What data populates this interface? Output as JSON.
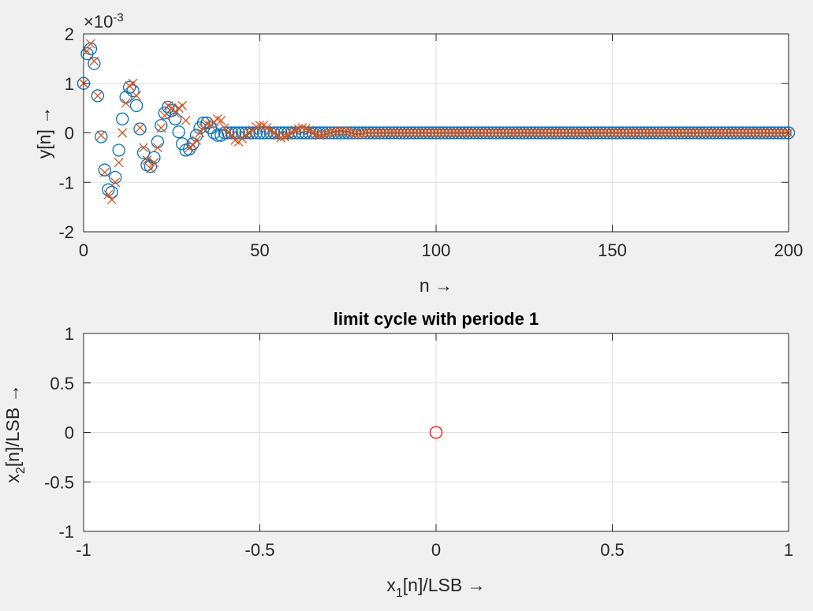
{
  "chart_data": [
    {
      "type": "scatter",
      "title": "",
      "xlabel": "n →",
      "ylabel": "y[n] →",
      "exponent_label": "×10",
      "exponent_power": "-3",
      "xlim": [
        0,
        200
      ],
      "ylim": [
        -2,
        2
      ],
      "xticks": [
        "0",
        "50",
        "100",
        "150",
        "200"
      ],
      "yticks": [
        "2",
        "1",
        "0",
        "-1",
        "-2"
      ],
      "grid": true,
      "colors": {
        "series1": "#0072bd",
        "series2": "#d95319"
      },
      "series": [
        {
          "marker": "circle",
          "color": "#0072bd",
          "points": [
            [
              0,
              1.0
            ],
            [
              1,
              1.6
            ],
            [
              2,
              1.7
            ],
            [
              3,
              1.4
            ],
            [
              4,
              0.75
            ],
            [
              5,
              -0.08
            ],
            [
              6,
              -0.75
            ],
            [
              7,
              -1.15
            ],
            [
              8,
              -1.2
            ],
            [
              9,
              -0.9
            ],
            [
              10,
              -0.35
            ],
            [
              11,
              0.28
            ],
            [
              12,
              0.72
            ],
            [
              13,
              0.92
            ],
            [
              14,
              0.85
            ],
            [
              15,
              0.55
            ],
            [
              16,
              0.08
            ],
            [
              17,
              -0.4
            ],
            [
              18,
              -0.65
            ],
            [
              19,
              -0.68
            ],
            [
              20,
              -0.5
            ],
            [
              21,
              -0.18
            ],
            [
              22,
              0.15
            ],
            [
              23,
              0.4
            ],
            [
              24,
              0.52
            ],
            [
              25,
              0.45
            ],
            [
              26,
              0.28
            ],
            [
              27,
              0.02
            ],
            [
              28,
              -0.22
            ],
            [
              29,
              -0.35
            ],
            [
              30,
              -0.33
            ],
            [
              31,
              -0.22
            ],
            [
              32,
              -0.05
            ],
            [
              33,
              0.1
            ],
            [
              34,
              0.2
            ],
            [
              35,
              0.2
            ],
            [
              36,
              0.1
            ],
            [
              37,
              0.0
            ],
            [
              38,
              -0.05
            ],
            [
              39,
              -0.05
            ],
            [
              40,
              0.0
            ],
            [
              41,
              0.0
            ]
          ],
          "tail_from": 42,
          "tail_to": 200,
          "tail_value": 0
        },
        {
          "marker": "cross",
          "color": "#d95319",
          "points": [
            [
              0,
              1.0
            ],
            [
              1,
              1.65
            ],
            [
              2,
              1.8
            ],
            [
              3,
              1.45
            ],
            [
              4,
              0.75
            ],
            [
              5,
              -0.05
            ],
            [
              6,
              -0.8
            ],
            [
              7,
              -1.25
            ],
            [
              8,
              -1.35
            ],
            [
              9,
              -1.0
            ],
            [
              10,
              -0.6
            ],
            [
              11,
              0.0
            ],
            [
              12,
              0.6
            ],
            [
              13,
              0.95
            ],
            [
              14,
              1.0
            ],
            [
              15,
              0.75
            ],
            [
              16,
              0.1
            ],
            [
              17,
              -0.3
            ],
            [
              18,
              -0.55
            ],
            [
              19,
              -0.72
            ],
            [
              20,
              -0.6
            ],
            [
              21,
              -0.3
            ],
            [
              22,
              0.1
            ],
            [
              23,
              0.35
            ],
            [
              24,
              0.55
            ],
            [
              25,
              0.5
            ],
            [
              26,
              0.4
            ],
            [
              27,
              0.5
            ],
            [
              28,
              0.55
            ],
            [
              29,
              0.25
            ],
            [
              30,
              -0.3
            ],
            [
              31,
              -0.25
            ],
            [
              32,
              -0.15
            ],
            [
              33,
              0.0
            ],
            [
              34,
              0.1
            ],
            [
              35,
              0.18
            ],
            [
              36,
              0.15
            ],
            [
              37,
              0.22
            ],
            [
              38,
              0.28
            ],
            [
              39,
              0.25
            ],
            [
              40,
              0.1
            ],
            [
              41,
              0.0
            ],
            [
              42,
              -0.05
            ],
            [
              43,
              -0.15
            ],
            [
              44,
              -0.18
            ],
            [
              45,
              -0.12
            ],
            [
              46,
              -0.05
            ],
            [
              47,
              0.0
            ],
            [
              48,
              0.05
            ],
            [
              49,
              0.12
            ],
            [
              50,
              0.15
            ],
            [
              51,
              0.15
            ],
            [
              52,
              0.1
            ],
            [
              53,
              0.05
            ],
            [
              54,
              0.0
            ],
            [
              55,
              -0.05
            ],
            [
              56,
              -0.1
            ],
            [
              57,
              -0.08
            ],
            [
              58,
              -0.05
            ],
            [
              59,
              0.0
            ],
            [
              60,
              0.05
            ],
            [
              61,
              0.08
            ],
            [
              62,
              0.1
            ],
            [
              63,
              0.08
            ],
            [
              64,
              0.05
            ],
            [
              65,
              0.0
            ],
            [
              66,
              -0.03
            ],
            [
              67,
              -0.05
            ],
            [
              68,
              -0.04
            ],
            [
              69,
              -0.02
            ],
            [
              70,
              0.0
            ],
            [
              71,
              0.02
            ],
            [
              72,
              0.03
            ],
            [
              73,
              0.04
            ],
            [
              74,
              0.03
            ],
            [
              75,
              0.02
            ],
            [
              76,
              0.0
            ],
            [
              77,
              -0.02
            ],
            [
              78,
              -0.03
            ],
            [
              79,
              -0.02
            ],
            [
              80,
              0.0
            ]
          ],
          "tail_from": 81,
          "tail_to": 200,
          "tail_value": 0
        }
      ]
    },
    {
      "type": "scatter",
      "title": "limit cycle with periode 1",
      "xlabel_main": "x",
      "xlabel_sub": "1",
      "xlabel_rest": "[n]/LSB →",
      "ylabel_main": "x",
      "ylabel_sub": "2",
      "ylabel_rest": "[n]/LSB →",
      "xlim": [
        -1,
        1
      ],
      "ylim": [
        -1,
        1
      ],
      "xticks": [
        "-1",
        "-0.5",
        "0",
        "0.5",
        "1"
      ],
      "yticks": [
        "1",
        "0.5",
        "0",
        "-0.5",
        "-1"
      ],
      "grid": true,
      "series": [
        {
          "marker": "circle",
          "color": "#ff0000",
          "points": [
            [
              0,
              0
            ]
          ]
        }
      ]
    }
  ]
}
